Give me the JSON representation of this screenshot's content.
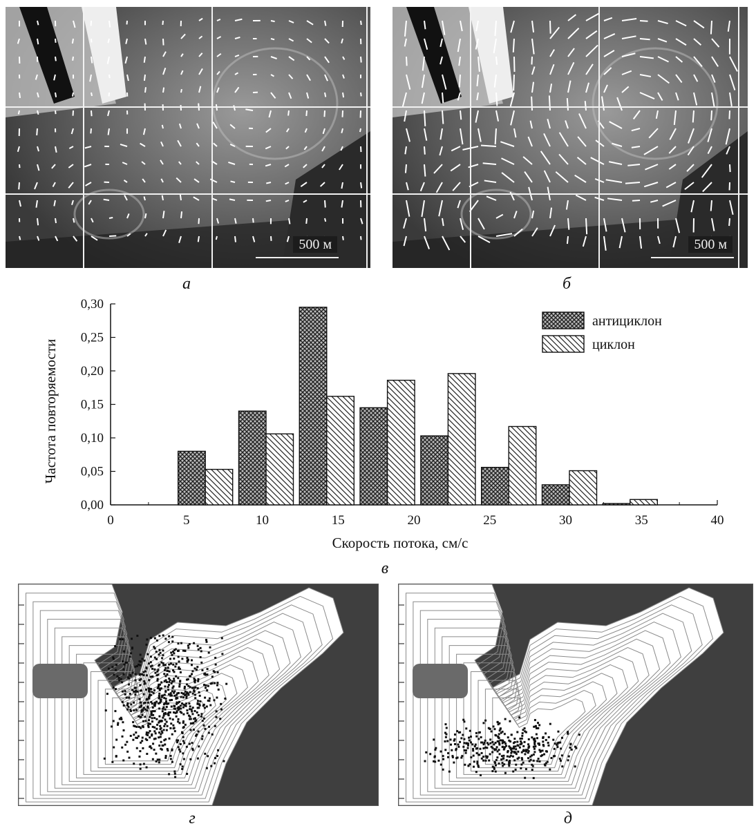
{
  "panels": {
    "a": {
      "caption": "а",
      "scale_label": "500 м"
    },
    "b": {
      "caption": "б",
      "scale_label": "500 м"
    },
    "v": {
      "caption": "в"
    },
    "g": {
      "caption": "г"
    },
    "d": {
      "caption": "д"
    }
  },
  "chart_data": {
    "type": "bar",
    "xlabel": "Скорость потока, см/с",
    "ylabel": "Частота повторяемости",
    "xlim": [
      0,
      40
    ],
    "ylim": [
      0,
      0.3
    ],
    "xticks": [
      "0",
      "5",
      "10",
      "15",
      "20",
      "25",
      "30",
      "35",
      "40"
    ],
    "yticks": [
      "0,00",
      "0,05",
      "0,10",
      "0,15",
      "0,20",
      "0,25",
      "0,30"
    ],
    "bin_centers": [
      6.25,
      10.25,
      14.25,
      18.25,
      22.25,
      26.25,
      30.25,
      34.25
    ],
    "legend_position": "top-right",
    "grid": false,
    "series": [
      {
        "name": "антициклон",
        "pattern": "crosshatch",
        "values": [
          0.08,
          0.14,
          0.295,
          0.145,
          0.103,
          0.056,
          0.03,
          0.002
        ]
      },
      {
        "name": "циклон",
        "pattern": "diagonal",
        "values": [
          0.053,
          0.106,
          0.162,
          0.186,
          0.196,
          0.117,
          0.051,
          0.008
        ]
      }
    ]
  },
  "colors": {
    "map_background": "#3f3f3f",
    "contour": "#8a8a8a",
    "point": "#111111",
    "photo_dark": "#222222"
  },
  "icons": {
    "scale_bar": "scale-bar-icon"
  }
}
